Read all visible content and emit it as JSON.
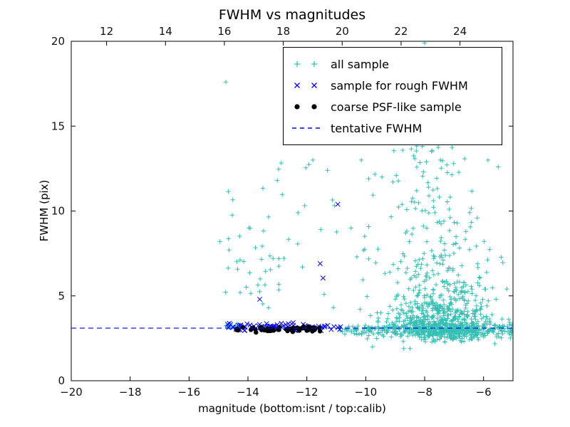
{
  "chart_data": {
    "type": "scatter",
    "title": "FWHM vs magnitudes",
    "xlabel": "magnitude (bottom:isnt / top:calib)",
    "ylabel": "FWHM (pix)",
    "xlim": [
      -20,
      -5
    ],
    "ylim": [
      0,
      20
    ],
    "x_ticks_bottom": [
      -20,
      -18,
      -16,
      -14,
      -12,
      -10,
      -8,
      -6
    ],
    "x_ticks_top_labels": [
      12,
      14,
      16,
      18,
      20,
      22,
      24
    ],
    "top_axis_offset": 30.8,
    "y_ticks": [
      0,
      5,
      10,
      15,
      20
    ],
    "grid": false,
    "legend_position": "upper center-right",
    "tentative_fwhm": 3.1,
    "seed": 7,
    "series": [
      {
        "name": "all sample",
        "marker": "plus",
        "color": "#33bfb2",
        "points": [
          [
            -14.75,
            17.6
          ],
          [
            -14.95,
            8.2
          ],
          [
            -13.3,
            4.3
          ],
          [
            -13.0,
            11.8
          ],
          [
            -12.3,
            9.9
          ],
          [
            -12.15,
            6.7
          ],
          [
            -11.3,
            12.4
          ],
          [
            -10.5,
            9.0
          ],
          [
            -10.3,
            7.3
          ],
          [
            -10.15,
            13.0
          ],
          [
            -9.45,
            12.0
          ],
          [
            -9.2,
            14.4
          ],
          [
            -8.8,
            15.2
          ],
          [
            -8.4,
            16.2
          ],
          [
            -8.0,
            19.9
          ],
          [
            -7.8,
            19.5
          ],
          [
            -7.55,
            18.4
          ],
          [
            -7.2,
            16.7
          ],
          [
            -6.75,
            17.9
          ],
          [
            -6.5,
            14.6
          ],
          [
            -6.2,
            15.5
          ],
          [
            -5.85,
            13.0
          ],
          [
            -5.5,
            12.6
          ]
        ],
        "clusters": [
          {
            "count": 38,
            "x": {
              "dist": "normal",
              "mean": -13.9,
              "sd": 0.5
            },
            "clip_x": [
              -15.0,
              -12.95
            ],
            "y": {
              "dist": "lognormal",
              "base": 3.2,
              "mu": 1.3,
              "sigma": 0.5
            },
            "clip_y": [
              3.4,
              14.0
            ]
          },
          {
            "count": 12,
            "x": {
              "dist": "uniform",
              "min": -14.9,
              "max": -14.3
            },
            "y": {
              "dist": "normal",
              "mean": 3.2,
              "sd": 0.15
            }
          },
          {
            "count": 260,
            "x": {
              "dist": "uniform",
              "min": -10.9,
              "max": -5.0
            },
            "y": {
              "dist": "normal",
              "mean": 3.0,
              "sd": 0.16
            },
            "clip_y": [
              2.4,
              3.6
            ]
          },
          {
            "count": 60,
            "x": {
              "dist": "uniform",
              "min": -10.6,
              "max": -5.0
            },
            "y": {
              "dist": "normal",
              "mean": 3.0,
              "sd": 0.5
            },
            "clip_y": [
              1.9,
              4.6
            ]
          },
          {
            "count": 700,
            "x": {
              "dist": "normal",
              "mean": -7.4,
              "sd": 0.85
            },
            "clip_x": [
              -10.3,
              -5.05
            ],
            "y": {
              "dist": "lognormal",
              "base": 2.1,
              "mu": 0.45,
              "sigma": 0.7
            },
            "clip_y": [
              2.0,
              19.5
            ]
          },
          {
            "count": 120,
            "x": {
              "dist": "normal",
              "mean": -7.8,
              "sd": 0.9
            },
            "clip_x": [
              -9.9,
              -5.3
            ],
            "y": {
              "dist": "uniform",
              "min": 6.0,
              "max": 15.5
            }
          },
          {
            "count": 20,
            "x": {
              "dist": "uniform",
              "min": -12.9,
              "max": -9.95
            },
            "y": {
              "dist": "uniform",
              "min": 3.8,
              "max": 14.6
            }
          }
        ]
      },
      {
        "name": "sample for rough FWHM",
        "marker": "x",
        "color": "#0000ff",
        "points": [
          [
            -13.6,
            4.8
          ],
          [
            -11.55,
            6.9
          ],
          [
            -11.45,
            6.05
          ],
          [
            -10.95,
            10.4
          ]
        ],
        "clusters": [
          {
            "count": 72,
            "x": {
              "dist": "uniform",
              "min": -14.7,
              "max": -10.85
            },
            "y": {
              "dist": "normal",
              "mean": 3.18,
              "sd": 0.13
            },
            "clip_y": [
              2.9,
              3.7
            ]
          }
        ]
      },
      {
        "name": "coarse PSF-like sample",
        "marker": "dot",
        "color": "#000000",
        "points": [],
        "clusters": [
          {
            "count": 58,
            "x": {
              "dist": "uniform",
              "min": -14.5,
              "max": -11.55
            },
            "y": {
              "dist": "normal",
              "mean": 3.02,
              "sd": 0.08
            },
            "clip_y": [
              2.82,
              3.3
            ]
          }
        ]
      },
      {
        "name": "tentative FWHM",
        "type": "hline",
        "y": 3.1,
        "color": "#0000ff",
        "dash": true
      }
    ]
  }
}
